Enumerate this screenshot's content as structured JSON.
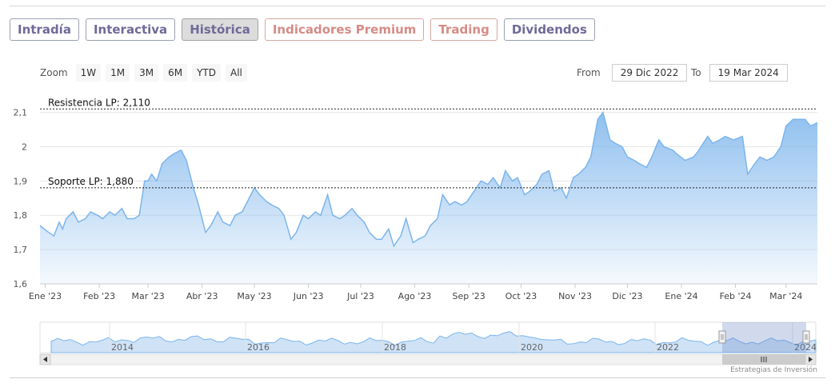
{
  "tabs": [
    {
      "label": "Intradía",
      "style": "normal"
    },
    {
      "label": "Interactiva",
      "style": "normal"
    },
    {
      "label": "Histórica",
      "style": "active"
    },
    {
      "label": "Indicadores Premium",
      "style": "premium"
    },
    {
      "label": "Trading",
      "style": "premium"
    },
    {
      "label": "Dividendos",
      "style": "normal"
    }
  ],
  "zoom": {
    "label": "Zoom",
    "buttons": [
      "1W",
      "1M",
      "3M",
      "6M",
      "YTD",
      "All"
    ]
  },
  "range": {
    "from_label": "From",
    "from_value": "29 Dic 2022",
    "to_label": "To",
    "to_value": "19 Mar 2024"
  },
  "credit": "Estrategias de Inversión",
  "colors": {
    "line": "#7cb5ec",
    "fill_top": "#7cb5ec",
    "fill_bottom": "#eef5fc",
    "tab_text": "#6f6a98",
    "premium_text": "#d58c86"
  },
  "chart_data": {
    "type": "area",
    "title": "",
    "xlabel": "",
    "ylabel": "",
    "ylim": [
      1.6,
      2.12
    ],
    "y_ticks": [
      1.6,
      1.7,
      1.8,
      1.9,
      2.0,
      2.1
    ],
    "y_tick_labels": [
      "1,6",
      "1,7",
      "1,8",
      "1,9",
      "2",
      "2,1"
    ],
    "x_range": [
      "2022-12-29",
      "2024-03-19"
    ],
    "x_ticks": [
      {
        "date": "2023-01-01",
        "label": "Ene '23"
      },
      {
        "date": "2023-02-01",
        "label": "Feb '23"
      },
      {
        "date": "2023-03-01",
        "label": "Mar '23"
      },
      {
        "date": "2023-04-01",
        "label": "Abr '23"
      },
      {
        "date": "2023-05-01",
        "label": "May '23"
      },
      {
        "date": "2023-06-01",
        "label": "Jun '23"
      },
      {
        "date": "2023-07-01",
        "label": "Jul '23"
      },
      {
        "date": "2023-08-01",
        "label": "Ago '23"
      },
      {
        "date": "2023-09-01",
        "label": "Sep '23"
      },
      {
        "date": "2023-10-01",
        "label": "Oct '23"
      },
      {
        "date": "2023-11-01",
        "label": "Nov '23"
      },
      {
        "date": "2023-12-01",
        "label": "Dic '23"
      },
      {
        "date": "2024-01-01",
        "label": "Ene '24"
      },
      {
        "date": "2024-02-01",
        "label": "Feb '24"
      },
      {
        "date": "2024-03-01",
        "label": "Mar '24"
      }
    ],
    "grid": true,
    "reference_lines": [
      {
        "label": "Resistencia LP: 2,110",
        "value": 2.11
      },
      {
        "label": "Soporte LP: 1,880",
        "value": 1.88
      }
    ],
    "series": [
      {
        "points": [
          [
            "2022-12-29",
            1.77
          ],
          [
            "2023-01-03",
            1.75
          ],
          [
            "2023-01-06",
            1.74
          ],
          [
            "2023-01-09",
            1.78
          ],
          [
            "2023-01-11",
            1.76
          ],
          [
            "2023-01-13",
            1.79
          ],
          [
            "2023-01-17",
            1.81
          ],
          [
            "2023-01-20",
            1.78
          ],
          [
            "2023-01-24",
            1.79
          ],
          [
            "2023-01-27",
            1.81
          ],
          [
            "2023-01-31",
            1.8
          ],
          [
            "2023-02-03",
            1.79
          ],
          [
            "2023-02-07",
            1.81
          ],
          [
            "2023-02-10",
            1.8
          ],
          [
            "2023-02-14",
            1.82
          ],
          [
            "2023-02-17",
            1.79
          ],
          [
            "2023-02-21",
            1.79
          ],
          [
            "2023-02-24",
            1.8
          ],
          [
            "2023-02-27",
            1.9
          ],
          [
            "2023-03-01",
            1.9
          ],
          [
            "2023-03-03",
            1.92
          ],
          [
            "2023-03-06",
            1.9
          ],
          [
            "2023-03-09",
            1.95
          ],
          [
            "2023-03-13",
            1.97
          ],
          [
            "2023-03-16",
            1.98
          ],
          [
            "2023-03-20",
            1.99
          ],
          [
            "2023-03-23",
            1.96
          ],
          [
            "2023-03-27",
            1.88
          ],
          [
            "2023-03-30",
            1.83
          ],
          [
            "2023-04-03",
            1.75
          ],
          [
            "2023-04-06",
            1.77
          ],
          [
            "2023-04-10",
            1.81
          ],
          [
            "2023-04-13",
            1.78
          ],
          [
            "2023-04-17",
            1.77
          ],
          [
            "2023-04-20",
            1.8
          ],
          [
            "2023-04-24",
            1.81
          ],
          [
            "2023-04-27",
            1.84
          ],
          [
            "2023-05-01",
            1.88
          ],
          [
            "2023-05-04",
            1.86
          ],
          [
            "2023-05-08",
            1.84
          ],
          [
            "2023-05-11",
            1.83
          ],
          [
            "2023-05-15",
            1.82
          ],
          [
            "2023-05-18",
            1.8
          ],
          [
            "2023-05-22",
            1.73
          ],
          [
            "2023-05-25",
            1.75
          ],
          [
            "2023-05-29",
            1.8
          ],
          [
            "2023-06-01",
            1.79
          ],
          [
            "2023-06-05",
            1.81
          ],
          [
            "2023-06-08",
            1.8
          ],
          [
            "2023-06-12",
            1.86
          ],
          [
            "2023-06-15",
            1.8
          ],
          [
            "2023-06-19",
            1.79
          ],
          [
            "2023-06-22",
            1.8
          ],
          [
            "2023-06-26",
            1.82
          ],
          [
            "2023-06-29",
            1.8
          ],
          [
            "2023-07-03",
            1.78
          ],
          [
            "2023-07-06",
            1.75
          ],
          [
            "2023-07-10",
            1.73
          ],
          [
            "2023-07-13",
            1.73
          ],
          [
            "2023-07-17",
            1.76
          ],
          [
            "2023-07-20",
            1.71
          ],
          [
            "2023-07-24",
            1.74
          ],
          [
            "2023-07-27",
            1.79
          ],
          [
            "2023-07-31",
            1.72
          ],
          [
            "2023-08-03",
            1.73
          ],
          [
            "2023-08-07",
            1.74
          ],
          [
            "2023-08-10",
            1.77
          ],
          [
            "2023-08-14",
            1.79
          ],
          [
            "2023-08-17",
            1.86
          ],
          [
            "2023-08-21",
            1.83
          ],
          [
            "2023-08-24",
            1.84
          ],
          [
            "2023-08-28",
            1.83
          ],
          [
            "2023-08-31",
            1.84
          ],
          [
            "2023-09-04",
            1.87
          ],
          [
            "2023-09-08",
            1.9
          ],
          [
            "2023-09-12",
            1.89
          ],
          [
            "2023-09-15",
            1.91
          ],
          [
            "2023-09-19",
            1.88
          ],
          [
            "2023-09-22",
            1.93
          ],
          [
            "2023-09-26",
            1.9
          ],
          [
            "2023-09-29",
            1.91
          ],
          [
            "2023-10-03",
            1.86
          ],
          [
            "2023-10-06",
            1.87
          ],
          [
            "2023-10-10",
            1.89
          ],
          [
            "2023-10-13",
            1.92
          ],
          [
            "2023-10-17",
            1.93
          ],
          [
            "2023-10-20",
            1.87
          ],
          [
            "2023-10-24",
            1.88
          ],
          [
            "2023-10-27",
            1.85
          ],
          [
            "2023-10-31",
            1.91
          ],
          [
            "2023-11-03",
            1.92
          ],
          [
            "2023-11-07",
            1.94
          ],
          [
            "2023-11-10",
            1.97
          ],
          [
            "2023-11-14",
            2.08
          ],
          [
            "2023-11-17",
            2.1
          ],
          [
            "2023-11-21",
            2.02
          ],
          [
            "2023-11-24",
            2.01
          ],
          [
            "2023-11-28",
            2.0
          ],
          [
            "2023-12-01",
            1.97
          ],
          [
            "2023-12-05",
            1.96
          ],
          [
            "2023-12-08",
            1.95
          ],
          [
            "2023-12-12",
            1.94
          ],
          [
            "2023-12-15",
            1.97
          ],
          [
            "2023-12-19",
            2.02
          ],
          [
            "2023-12-22",
            2.0
          ],
          [
            "2023-12-27",
            1.99
          ],
          [
            "2023-12-29",
            1.98
          ],
          [
            "2024-01-03",
            1.96
          ],
          [
            "2024-01-08",
            1.97
          ],
          [
            "2024-01-11",
            1.99
          ],
          [
            "2024-01-16",
            2.03
          ],
          [
            "2024-01-19",
            2.01
          ],
          [
            "2024-01-23",
            2.02
          ],
          [
            "2024-01-26",
            2.03
          ],
          [
            "2024-01-31",
            2.02
          ],
          [
            "2024-02-05",
            2.03
          ],
          [
            "2024-02-08",
            1.92
          ],
          [
            "2024-02-12",
            1.95
          ],
          [
            "2024-02-15",
            1.97
          ],
          [
            "2024-02-19",
            1.96
          ],
          [
            "2024-02-23",
            1.97
          ],
          [
            "2024-02-27",
            2.0
          ],
          [
            "2024-03-01",
            2.06
          ],
          [
            "2024-03-05",
            2.08
          ],
          [
            "2024-03-08",
            2.08
          ],
          [
            "2024-03-12",
            2.08
          ],
          [
            "2024-03-15",
            2.06
          ],
          [
            "2024-03-19",
            2.07
          ]
        ]
      }
    ],
    "navigator": {
      "year_labels": [
        "2014",
        "2016",
        "2018",
        "2020",
        "2022",
        "2024"
      ]
    }
  }
}
